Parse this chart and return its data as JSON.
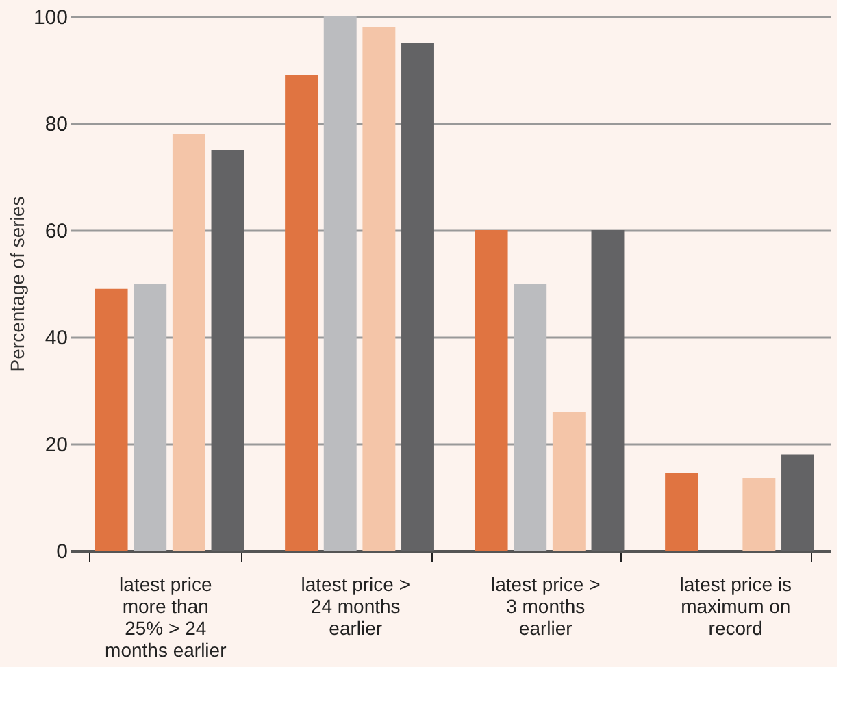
{
  "chart_data": {
    "type": "bar",
    "ylabel": "Percentage of series",
    "categories": [
      "latest price\nmore than\n25% > 24\nmonths earlier",
      "latest price >\n24 months\nearlier",
      "latest price >\n3 months\nearlier",
      "latest price is\nmaximum on\nrecord"
    ],
    "series": [
      {
        "color": "#e07441",
        "values": [
          49,
          89,
          60,
          14.6
        ]
      },
      {
        "color": "#bbbcbf",
        "values": [
          50,
          100,
          50,
          0
        ]
      },
      {
        "color": "#f4c5a8",
        "values": [
          78,
          98,
          26,
          13.6
        ]
      },
      {
        "color": "#636365",
        "values": [
          75,
          95,
          60,
          18
        ]
      }
    ],
    "ylim": [
      0,
      100
    ],
    "yticks": [
      0,
      20,
      40,
      60,
      80,
      100
    ],
    "grid": "y",
    "legend": false
  }
}
